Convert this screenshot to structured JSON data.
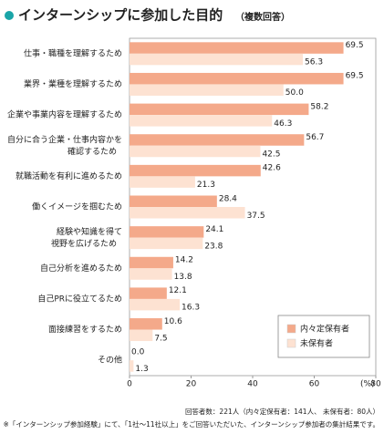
{
  "chart_data": {
    "type": "barh",
    "title": "インターンシップに参加した目的",
    "subtitle": "（複数回答）",
    "categories": [
      "仕事・職種を理解するため",
      "業界・業種を理解するため",
      "企業や事業内容を理解するため",
      "自分に合う企業・仕事内容かを\n確認するため",
      "就職活動を有利に進めるため",
      "働くイメージを掴むため",
      "経験や知識を得て\n視野を広げるため",
      "自己分析を進めるため",
      "自己PRに役立てるため",
      "面接練習をするため",
      "その他"
    ],
    "series": [
      {
        "name": "内々定保有者",
        "color": "#f4a98a",
        "values": [
          69.5,
          69.5,
          58.2,
          56.7,
          42.6,
          28.4,
          24.1,
          14.2,
          12.1,
          10.6,
          0.0
        ],
        "value_labels": [
          "69.5",
          "69.5",
          "58.2",
          "56.7",
          "42.6",
          "28.4",
          "24.1",
          "14.2",
          "12.1",
          "10.6",
          "0.0"
        ]
      },
      {
        "name": "未保有者",
        "color": "#fde2d2",
        "values": [
          56.3,
          50.0,
          46.3,
          42.5,
          21.3,
          37.5,
          23.8,
          13.8,
          16.3,
          7.5,
          1.3
        ],
        "value_labels": [
          "56.3",
          "50.0",
          "46.3",
          "42.5",
          "21.3",
          "37.5",
          "23.8",
          "13.8",
          "16.3",
          "7.5",
          "1.3"
        ]
      }
    ],
    "xlim": [
      0,
      80
    ],
    "xticks": [
      0,
      20,
      40,
      60,
      80
    ],
    "x_unit": "(%)",
    "legend": "lower right",
    "notes": [
      "回答者数：221人（内々定保有者：141人、 未保有者：80人）",
      "※「インターンシップ参加経験」にて、「1社～11社以上」をご回答いただいた、インターンシップ参加者の集計結果です。"
    ]
  }
}
